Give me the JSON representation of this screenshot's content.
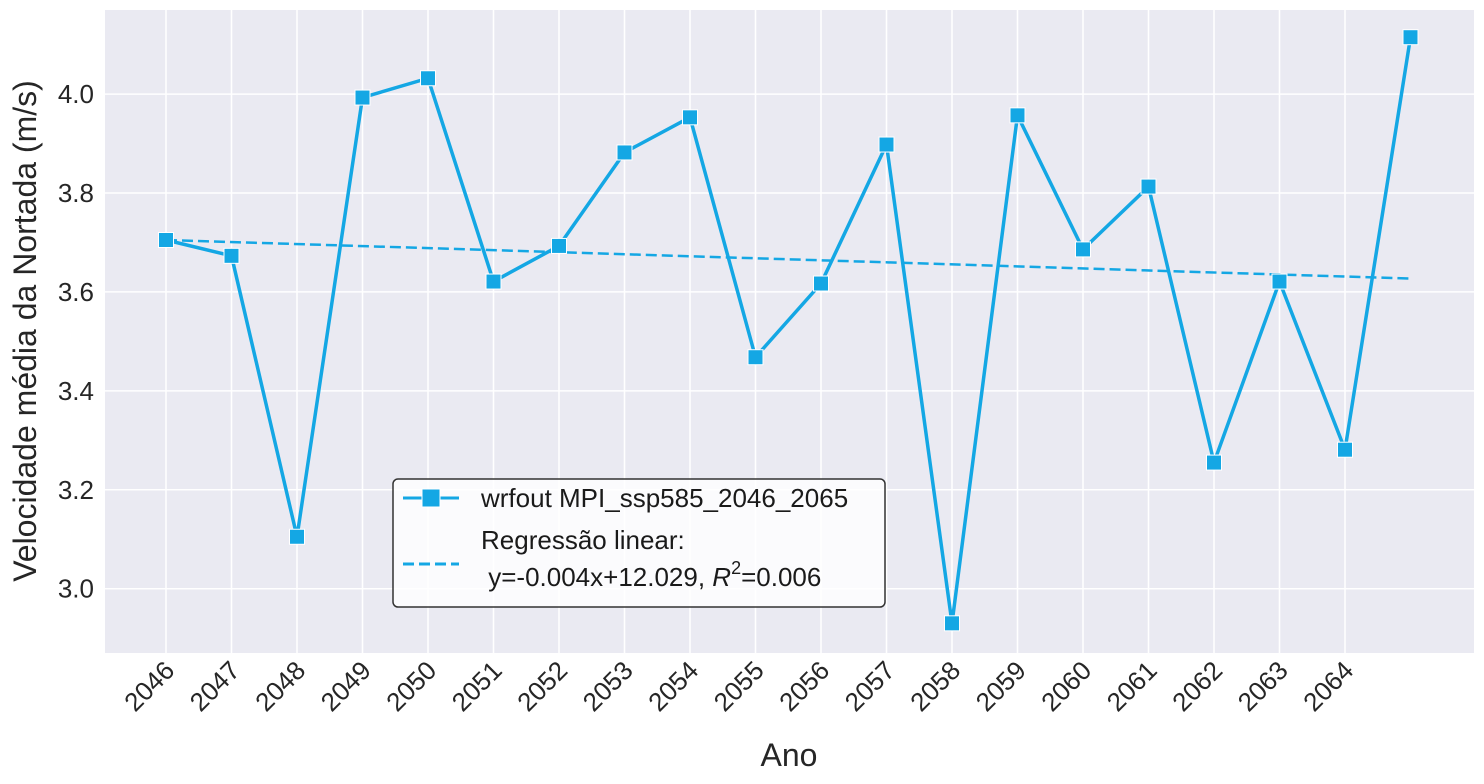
{
  "chart_data": {
    "type": "line",
    "xlabel": "Ano",
    "ylabel": "Velocidade média da Nortada (m/s)",
    "x": [
      2046,
      2047,
      2048,
      2049,
      2050,
      2051,
      2052,
      2053,
      2054,
      2055,
      2056,
      2057,
      2058,
      2059,
      2060,
      2061,
      2062,
      2063,
      2064,
      2065
    ],
    "x_tick_labels": [
      "2046",
      "2047",
      "2048",
      "2049",
      "2050",
      "2051",
      "2052",
      "2053",
      "2054",
      "2055",
      "2056",
      "2057",
      "2058",
      "2059",
      "2060",
      "2061",
      "2062",
      "2063",
      "2064"
    ],
    "y_ticks": [
      3.0,
      3.2,
      3.4,
      3.6,
      3.8,
      4.0
    ],
    "y_tick_labels": [
      "3.0",
      "3.2",
      "3.4",
      "3.6",
      "3.8",
      "4.0"
    ],
    "ylim": [
      2.87,
      4.17
    ],
    "grid": true,
    "background": "#eaeaf2",
    "series": [
      {
        "name": "wrfout MPI_ssp585_2046_2065",
        "color": "#14a7e4",
        "marker": "square",
        "values": [
          3.705,
          3.673,
          3.105,
          3.993,
          4.032,
          3.621,
          3.693,
          3.882,
          3.953,
          3.468,
          3.617,
          3.898,
          2.93,
          3.957,
          3.686,
          3.813,
          3.255,
          3.621,
          3.281,
          4.115
        ]
      }
    ],
    "regression": {
      "label_line1": "Regressão linear:",
      "label_line2_prefix": " y=-0.004x+12.029, ",
      "label_r": "R",
      "label_sup": "2",
      "label_line2_suffix": "=0.006",
      "y_start": 3.705,
      "y_end": 3.627,
      "color": "#14a7e4",
      "style": "dashed"
    },
    "legend_placement": "lower-center"
  }
}
